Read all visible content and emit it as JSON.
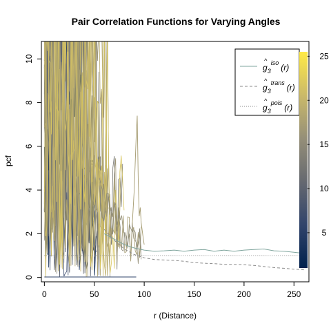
{
  "chart_data": {
    "type": "line",
    "title": "Pair Correlation Functions for Varying Angles",
    "xlabel": "r (Distance)",
    "ylabel": "pcf",
    "xlim": [
      -3,
      265
    ],
    "ylim": [
      -0.2,
      10.8
    ],
    "x_ticks": [
      0,
      50,
      100,
      150,
      200,
      250
    ],
    "y_ticks": [
      0,
      2,
      4,
      6,
      8,
      10
    ],
    "grid": false,
    "legend_position": "top-right",
    "legend": [
      {
        "label": "iso",
        "style": "solid",
        "color": "#7fa59d"
      },
      {
        "label": "trans",
        "style": "dashed",
        "color": "#8a8a8a"
      },
      {
        "label": "pois",
        "style": "dotted",
        "color": "#8a8a8a"
      }
    ],
    "legend_symbol": "g",
    "legend_subscript": "3",
    "legend_arg": "(r)",
    "colorbar": {
      "range": [
        1,
        25.5
      ],
      "ticks": [
        5,
        10,
        15,
        20,
        25
      ],
      "colors": [
        "#00204d",
        "#31446b",
        "#666970",
        "#958f78",
        "#cbba69",
        "#ffea46"
      ]
    },
    "series": [
      {
        "style": "solid",
        "color": "#7fa59d",
        "x": [
          60,
          70,
          80,
          90,
          100,
          110,
          120,
          130,
          140,
          150,
          160,
          170,
          180,
          190,
          200,
          210,
          220,
          230,
          240,
          250,
          260
        ],
        "y": [
          2.0,
          1.75,
          1.5,
          1.35,
          1.25,
          1.2,
          1.22,
          1.25,
          1.2,
          1.25,
          1.28,
          1.2,
          1.25,
          1.2,
          1.25,
          1.28,
          1.3,
          1.22,
          1.2,
          1.15,
          1.1
        ]
      },
      {
        "style": "dashed",
        "color": "#8a8a8a",
        "x": [
          60,
          70,
          80,
          90,
          100,
          110,
          120,
          130,
          140,
          150,
          160,
          170,
          180,
          190,
          200,
          210,
          220,
          230,
          240,
          250,
          260
        ],
        "y": [
          2.2,
          1.7,
          1.3,
          1.05,
          0.9,
          0.82,
          0.8,
          0.78,
          0.74,
          0.68,
          0.65,
          0.63,
          0.6,
          0.6,
          0.58,
          0.55,
          0.5,
          0.45,
          0.42,
          0.38,
          0.35
        ]
      },
      {
        "style": "dotted",
        "color": "#8a8a8a",
        "x": [
          0,
          260
        ],
        "y": [
          1.0,
          1.0
        ]
      }
    ]
  }
}
